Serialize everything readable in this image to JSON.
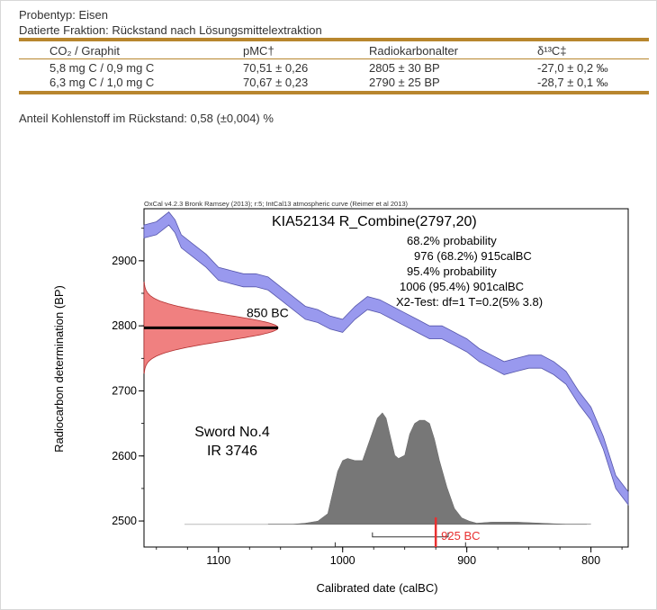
{
  "header": {
    "line1": "Probentyp: Eisen",
    "line2": "Datierte Fraktion: Rückstand nach Lösungsmittelextraktion"
  },
  "table": {
    "columns": [
      "CO₂ / Graphit",
      "pMC†",
      "Radiokarbonalter",
      "δ¹³C‡"
    ],
    "rows": [
      [
        "5,8 mg C / 0,9 mg C",
        "70,51 ± 0,26",
        "2805 ± 30 BP",
        "-27,0 ± 0,2 ‰"
      ],
      [
        "6,3 mg C / 1,0 mg C",
        "70,67 ± 0,23",
        "2790 ± 25 BP",
        "-28,7 ± 0,1 ‰"
      ]
    ]
  },
  "note": "Anteil Kohlenstoff im Rückstand: 0,58 (±0,004) %",
  "chart_data": {
    "type": "area",
    "credit": "OxCal v4.2.3 Bronk Ramsey (2013); r:5; IntCal13 atmospheric curve (Reimer et al 2013)",
    "title": "KIA52134 R_Combine(2797,20)",
    "annotations": [
      "68.2% probability",
      "976 (68.2%) 915calBC",
      "95.4% probability",
      "1006 (95.4%) 901calBC",
      "X2-Test: df=1 T=0.2(5% 3.8)"
    ],
    "sample_label": [
      "Sword No.4",
      "IR 3746"
    ],
    "xlabel": "Calibrated date (calBC)",
    "ylabel": "Radiocarbon determination (BP)",
    "xlim": [
      1160,
      770
    ],
    "ylim": [
      2460,
      2980
    ],
    "x_ticks": [
      1100,
      1000,
      900,
      800
    ],
    "y_ticks": [
      2500,
      2600,
      2700,
      2800,
      2900
    ],
    "calibration_curve": {
      "name": "IntCal13",
      "x": [
        1160,
        1150,
        1140,
        1135,
        1130,
        1120,
        1110,
        1100,
        1090,
        1080,
        1070,
        1060,
        1050,
        1040,
        1030,
        1020,
        1010,
        1000,
        990,
        980,
        970,
        960,
        950,
        940,
        930,
        920,
        910,
        900,
        890,
        880,
        870,
        860,
        850,
        840,
        830,
        820,
        810,
        800,
        790,
        780,
        770
      ],
      "y": [
        2945,
        2950,
        2965,
        2953,
        2930,
        2915,
        2900,
        2880,
        2875,
        2870,
        2870,
        2865,
        2850,
        2835,
        2820,
        2815,
        2805,
        2800,
        2820,
        2835,
        2830,
        2820,
        2810,
        2800,
        2790,
        2790,
        2780,
        2770,
        2755,
        2745,
        2735,
        2740,
        2745,
        2745,
        2735,
        2720,
        2690,
        2665,
        2620,
        2560,
        2535
      ],
      "band_halfwidth": 10,
      "color": "#9999ee"
    },
    "measurement": {
      "mean": 2797,
      "sigma": 20,
      "label": "850 BC",
      "color": "#f08080"
    },
    "posterior": {
      "color": "#777777",
      "x": [
        1060,
        1050,
        1040,
        1030,
        1020,
        1012,
        1008,
        1004,
        1000,
        996,
        990,
        984,
        978,
        972,
        968,
        965,
        962,
        958,
        955,
        950,
        946,
        942,
        938,
        934,
        930,
        926,
        922,
        916,
        910,
        904,
        898,
        892,
        880,
        860,
        840,
        820,
        800
      ],
      "p": [
        0.0,
        0.0,
        0.0,
        0.01,
        0.03,
        0.1,
        0.3,
        0.5,
        0.6,
        0.62,
        0.6,
        0.6,
        0.8,
        1.0,
        1.05,
        1.0,
        0.85,
        0.65,
        0.62,
        0.65,
        0.85,
        0.95,
        0.98,
        0.98,
        0.95,
        0.8,
        0.6,
        0.35,
        0.15,
        0.06,
        0.03,
        0.01,
        0.02,
        0.02,
        0.01,
        0.0,
        0.0
      ]
    },
    "range_68": [
      976,
      915
    ],
    "range_95": [
      1006,
      901
    ],
    "marker": {
      "value": 925,
      "label": "925 BC",
      "color": "#e83030"
    }
  }
}
